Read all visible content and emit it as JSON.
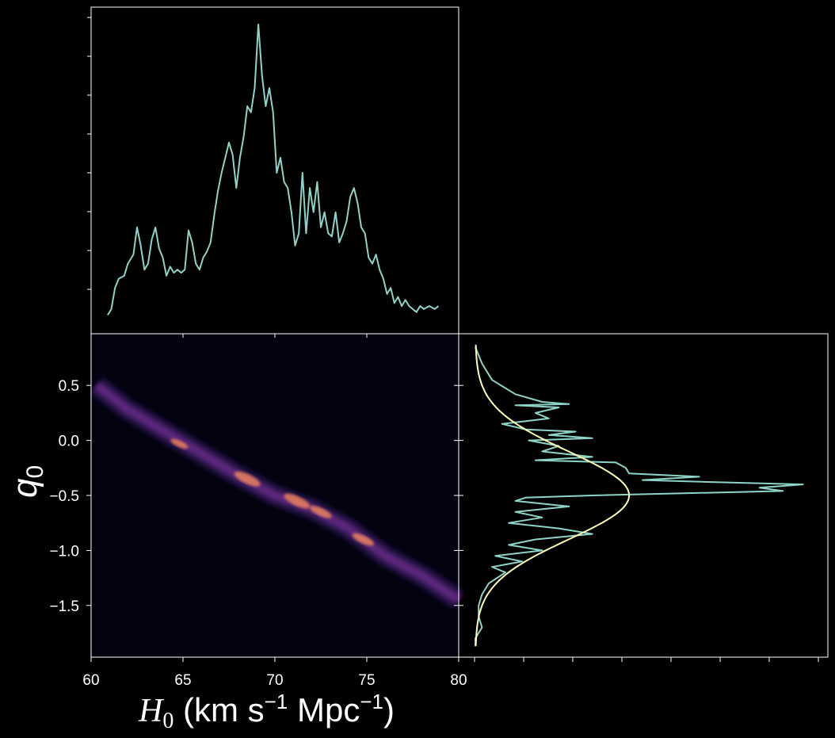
{
  "colors": {
    "background": "#000000",
    "axes": "#ffffff",
    "marginal_line": "#8dd3c7",
    "gaussian_fit": "#ffffb3",
    "heatmap_low": "#03020f",
    "heatmap_mid": "#3b1b6b",
    "heatmap_high": "#fc8d59"
  },
  "chart_data": [
    {
      "panel": "top-marginal",
      "type": "line",
      "series": [
        {
          "x": [
            60.9,
            61.1,
            61.3,
            61.5,
            61.8,
            62.0,
            62.3,
            62.5,
            62.7,
            62.9,
            63.1,
            63.3,
            63.5,
            63.7,
            63.9,
            64.1,
            64.3,
            64.5,
            64.7,
            64.9,
            65.1,
            65.3,
            65.5,
            65.7,
            65.9,
            66.1,
            66.3,
            66.5,
            66.7,
            66.9,
            67.1,
            67.3,
            67.5,
            67.7,
            67.9,
            68.1,
            68.3,
            68.5,
            68.7,
            68.9,
            69.1,
            69.3,
            69.5,
            69.7,
            69.9,
            70.1,
            70.3,
            70.5,
            70.7,
            70.9,
            71.1,
            71.3,
            71.5,
            71.7,
            71.9,
            72.1,
            72.3,
            72.5,
            72.7,
            72.9,
            73.1,
            73.3,
            73.5,
            73.7,
            73.9,
            74.1,
            74.3,
            74.5,
            74.7,
            74.9,
            75.1,
            75.3,
            75.5,
            75.7,
            75.9,
            76.1,
            76.3,
            76.5,
            76.7,
            76.9,
            77.1,
            77.3,
            77.5,
            77.7,
            77.9,
            78.1,
            78.4,
            78.7,
            78.9
          ],
          "y": [
            0.03,
            0.05,
            0.12,
            0.15,
            0.16,
            0.2,
            0.23,
            0.32,
            0.26,
            0.18,
            0.2,
            0.28,
            0.32,
            0.25,
            0.22,
            0.16,
            0.19,
            0.17,
            0.18,
            0.17,
            0.18,
            0.31,
            0.27,
            0.2,
            0.18,
            0.22,
            0.24,
            0.27,
            0.36,
            0.44,
            0.5,
            0.55,
            0.6,
            0.56,
            0.45,
            0.55,
            0.62,
            0.72,
            0.7,
            0.78,
            0.99,
            0.82,
            0.72,
            0.78,
            0.7,
            0.5,
            0.55,
            0.47,
            0.45,
            0.37,
            0.26,
            0.3,
            0.5,
            0.3,
            0.45,
            0.37,
            0.47,
            0.32,
            0.37,
            0.3,
            0.29,
            0.37,
            0.27,
            0.3,
            0.34,
            0.42,
            0.45,
            0.4,
            0.32,
            0.3,
            0.22,
            0.2,
            0.23,
            0.18,
            0.15,
            0.1,
            0.12,
            0.07,
            0.09,
            0.06,
            0.08,
            0.06,
            0.05,
            0.04,
            0.06,
            0.05,
            0.06,
            0.05,
            0.06
          ]
        }
      ],
      "xlim": [
        60,
        80
      ],
      "ylim": [
        0,
        1
      ]
    },
    {
      "panel": "joint-heatmap",
      "type": "heatmap",
      "xlabel": "$H_0$ (km s$^{-1}$ Mpc$^{-1}$)",
      "ylabel": "$q_0$",
      "xticks": [
        "60",
        "65",
        "70",
        "75",
        "80"
      ],
      "yticks": [
        "0.5",
        "0.0",
        "−0.5",
        "−1.0",
        "−1.5"
      ],
      "xlim": [
        60,
        80
      ],
      "ylim": [
        -1.97,
        0.97
      ],
      "ridge": {
        "x": [
          60.3,
          62,
          64,
          66,
          68,
          70,
          72,
          74,
          76,
          78,
          80
        ],
        "q0": [
          0.5,
          0.28,
          0.08,
          -0.12,
          -0.32,
          -0.5,
          -0.62,
          -0.8,
          -1.05,
          -1.23,
          -1.45
        ]
      }
    },
    {
      "panel": "right-marginal",
      "type": "line",
      "series": [
        {
          "name": "histogram",
          "q0": [
            0.85,
            0.7,
            0.55,
            0.42,
            0.35,
            0.33,
            0.32,
            0.3,
            0.25,
            0.2,
            0.15,
            0.1,
            0.08,
            0.05,
            0.02,
            0.0,
            -0.05,
            -0.1,
            -0.15,
            -0.18,
            -0.2,
            -0.25,
            -0.3,
            -0.33,
            -0.36,
            -0.38,
            -0.4,
            -0.43,
            -0.46,
            -0.5,
            -0.52,
            -0.55,
            -0.6,
            -0.65,
            -0.7,
            -0.75,
            -0.8,
            -0.85,
            -0.9,
            -0.95,
            -1.0,
            -1.05,
            -1.1,
            -1.15,
            -1.2,
            -1.3,
            -1.4,
            -1.5,
            -1.6,
            -1.7,
            -1.8,
            -1.87
          ],
          "value": [
            0.0,
            0.02,
            0.05,
            0.12,
            0.2,
            0.28,
            0.12,
            0.25,
            0.18,
            0.22,
            0.08,
            0.15,
            0.3,
            0.22,
            0.35,
            0.16,
            0.25,
            0.2,
            0.35,
            0.18,
            0.42,
            0.45,
            0.46,
            0.67,
            0.5,
            0.72,
            0.98,
            0.85,
            0.92,
            0.35,
            0.15,
            0.12,
            0.28,
            0.12,
            0.2,
            0.1,
            0.25,
            0.35,
            0.18,
            0.1,
            0.2,
            0.06,
            0.14,
            0.05,
            0.09,
            0.04,
            0.02,
            0.01,
            0.01,
            0.02,
            0.0,
            0.0
          ]
        },
        {
          "name": "gaussian fit",
          "mean": -0.5,
          "sigma": 0.4,
          "peak": 0.46
        }
      ],
      "q0_range": [
        -1.97,
        0.97
      ]
    }
  ]
}
